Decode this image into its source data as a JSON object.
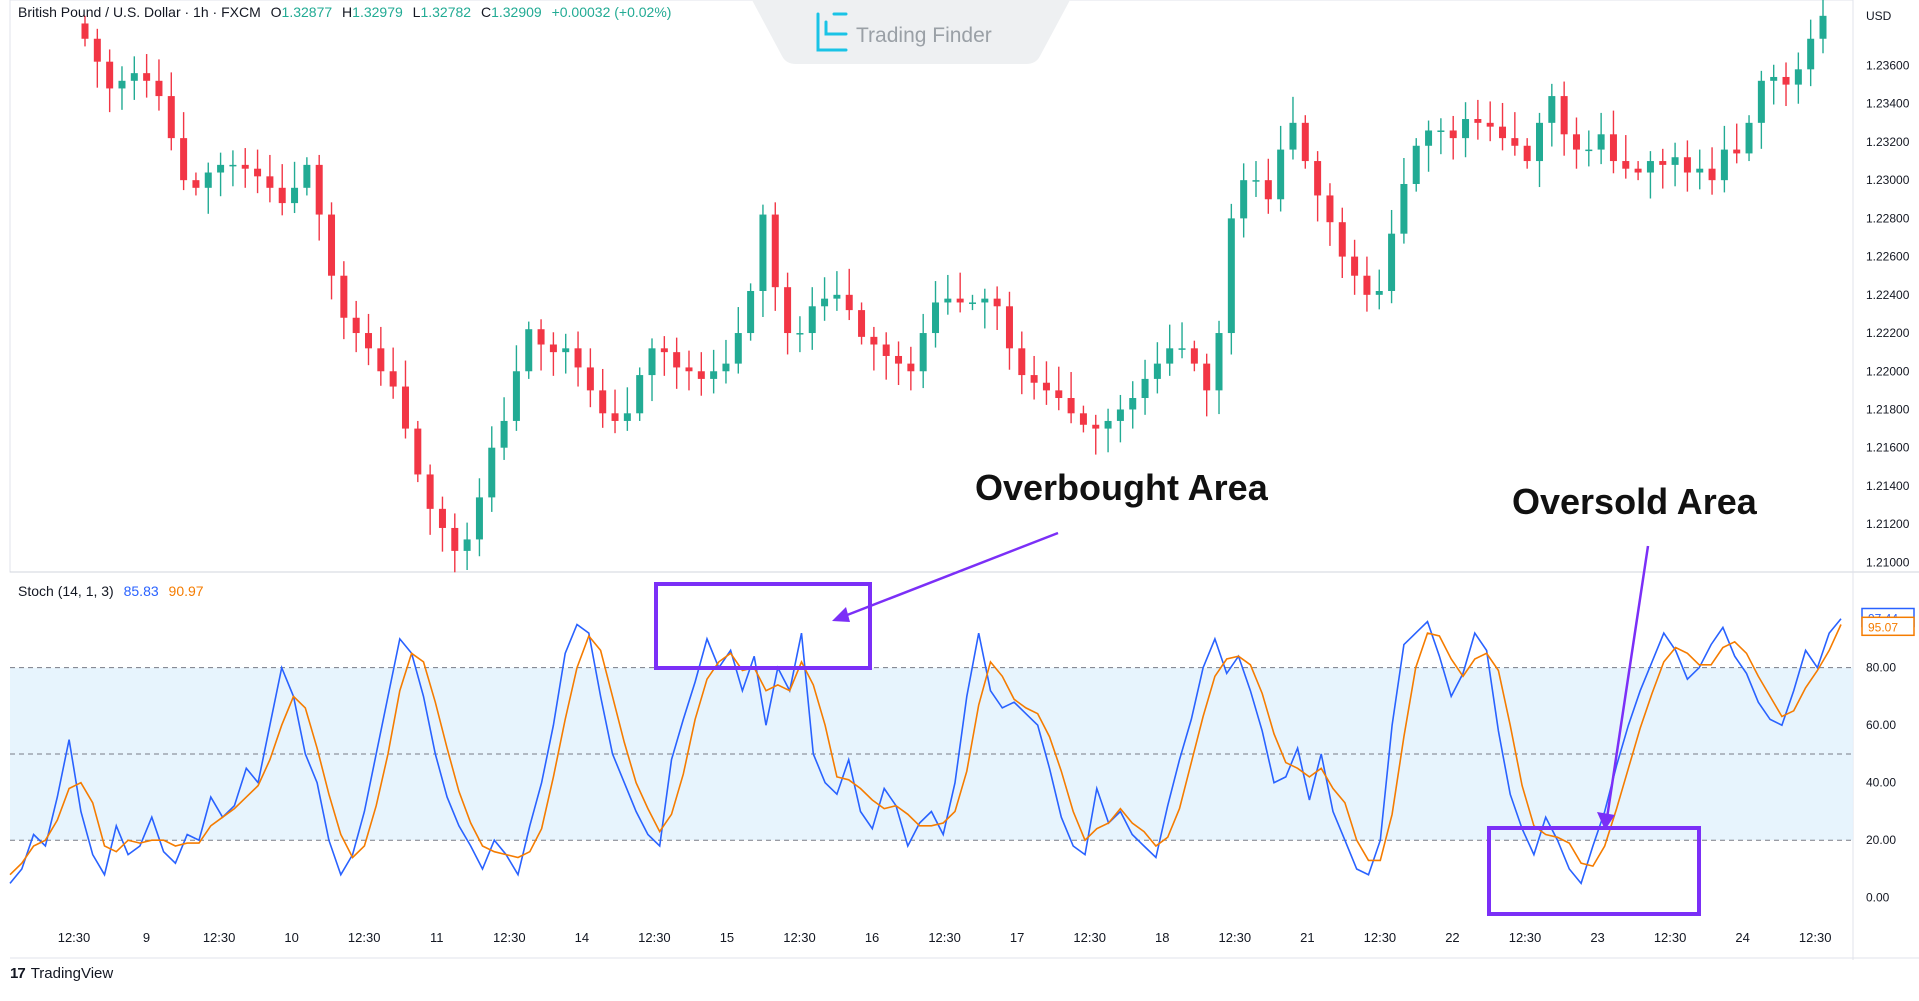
{
  "header": {
    "symbol": "British Pound / U.S. Dollar · 1h · FXCM",
    "o_label": "O",
    "o_value": "1.32877",
    "h_label": "H",
    "h_value": "1.32979",
    "l_label": "L",
    "l_value": "1.32782",
    "c_label": "C",
    "c_value": "1.32909",
    "change": "+0.00032 (+0.02%)"
  },
  "watermark": {
    "text": "Trading Finder"
  },
  "footer": {
    "brand": "TradingView",
    "brand_mark": "17"
  },
  "annotations": {
    "overbought": "Overbought Area",
    "oversold": "Oversold Area"
  },
  "colors": {
    "up": "#22ab94",
    "down": "#f23645",
    "k_line": "#2962ff",
    "d_line": "#f57c00",
    "band": "#e3f2fd",
    "annotation": "#7b2ff7",
    "grid": "#787b86"
  },
  "chart_data": [
    {
      "type": "candlestick",
      "currency": "USD",
      "price_axis_ticks": [
        "1.23600",
        "1.23400",
        "1.23200",
        "1.23000",
        "1.22800",
        "1.22600",
        "1.22400",
        "1.22200",
        "1.22000",
        "1.21800",
        "1.21600",
        "1.21400",
        "1.21200",
        "1.21000"
      ],
      "ylim": [
        1.2096,
        1.2388
      ],
      "x_tick_labels": [
        "12:30",
        "9",
        "12:30",
        "10",
        "12:30",
        "11",
        "12:30",
        "14",
        "12:30",
        "15",
        "12:30",
        "16",
        "12:30",
        "17",
        "12:30",
        "18",
        "12:30",
        "21",
        "12:30",
        "22",
        "12:30",
        "23",
        "12:30",
        "24",
        "12:30"
      ],
      "close_path": [
        1.2374,
        1.2362,
        1.2348,
        1.2352,
        1.2356,
        1.2352,
        1.2344,
        1.2322,
        1.23,
        1.2296,
        1.2304,
        1.2308,
        1.2308,
        1.2306,
        1.2302,
        1.2296,
        1.2288,
        1.2296,
        1.2308,
        1.2282,
        1.225,
        1.2228,
        1.222,
        1.2212,
        1.22,
        1.2192,
        1.217,
        1.2146,
        1.2128,
        1.2118,
        1.2106,
        1.2112,
        1.2134,
        1.216,
        1.2174,
        1.22,
        1.2222,
        1.2214,
        1.221,
        1.2212,
        1.2202,
        1.219,
        1.2178,
        1.2174,
        1.2178,
        1.2198,
        1.2212,
        1.221,
        1.2202,
        1.22,
        1.2196,
        1.22,
        1.2204,
        1.222,
        1.2242,
        1.2282,
        1.2244,
        1.222,
        1.222,
        1.2234,
        1.2238,
        1.224,
        1.2232,
        1.2218,
        1.2214,
        1.2208,
        1.2204,
        1.22,
        1.222,
        1.2236,
        1.2238,
        1.2236,
        1.2236,
        1.2238,
        1.2234,
        1.2212,
        1.2198,
        1.2194,
        1.219,
        1.2186,
        1.2178,
        1.2172,
        1.217,
        1.2174,
        1.218,
        1.2186,
        1.2196,
        1.2204,
        1.2212,
        1.2212,
        1.2204,
        1.219,
        1.222,
        1.228,
        1.23,
        1.23,
        1.229,
        1.2316,
        1.233,
        1.231,
        1.2292,
        1.2278,
        1.226,
        1.225,
        1.224,
        1.2242,
        1.2272,
        1.2298,
        1.2318,
        1.2326,
        1.2326,
        1.2322,
        1.2332,
        1.233,
        1.2328,
        1.2322,
        1.2318,
        1.231,
        1.233,
        1.2344,
        1.2324,
        1.2316,
        1.2316,
        1.2324,
        1.231,
        1.2306,
        1.2304,
        1.231,
        1.2308,
        1.2312,
        1.2304,
        1.2306,
        1.23,
        1.2316,
        1.2314,
        1.233,
        1.2352,
        1.2354,
        1.235,
        1.2358,
        1.2374,
        1.2386
      ]
    },
    {
      "type": "line",
      "indicator": "Stoch (14, 1, 3)",
      "k_value": "85.83",
      "d_value": "90.97",
      "last_k_label": "97.44",
      "last_d_label": "95.07",
      "ylim": [
        -6,
        107
      ],
      "y_ticks": [
        "80.00",
        "60.00",
        "40.00",
        "20.00",
        "0.00"
      ],
      "levels": [
        80,
        50,
        20
      ],
      "series": [
        {
          "key": "k",
          "values": [
            5,
            10,
            22,
            18,
            35,
            55,
            30,
            15,
            8,
            25,
            15,
            18,
            28,
            16,
            12,
            22,
            20,
            35,
            28,
            32,
            45,
            40,
            60,
            80,
            70,
            50,
            40,
            20,
            8,
            15,
            30,
            50,
            70,
            90,
            85,
            70,
            50,
            35,
            25,
            18,
            10,
            20,
            15,
            8,
            25,
            40,
            60,
            85,
            95,
            92,
            70,
            50,
            40,
            30,
            22,
            18,
            48,
            62,
            75,
            90,
            80,
            86,
            72,
            84,
            60,
            80,
            72,
            92,
            50,
            40,
            36,
            48,
            30,
            24,
            38,
            32,
            18,
            26,
            30,
            22,
            40,
            70,
            92,
            72,
            66,
            68,
            64,
            60,
            45,
            28,
            18,
            15,
            38,
            26,
            30,
            22,
            18,
            14,
            32,
            48,
            62,
            80,
            90,
            78,
            84,
            72,
            58,
            40,
            42,
            52,
            34,
            50,
            30,
            20,
            10,
            8,
            20,
            60,
            88,
            92,
            96,
            84,
            70,
            78,
            92,
            86,
            58,
            36,
            24,
            15,
            28,
            20,
            10,
            5,
            18,
            30,
            46,
            60,
            72,
            82,
            92,
            86,
            76,
            80,
            88,
            94,
            84,
            78,
            68,
            62,
            60,
            72,
            86,
            80,
            92,
            97
          ]
        },
        {
          "key": "d",
          "values": [
            8,
            12,
            18,
            20,
            27,
            38,
            40,
            33,
            18,
            16,
            20,
            19,
            20,
            20,
            18,
            19,
            19,
            25,
            28,
            31,
            35,
            39,
            48,
            60,
            70,
            66,
            52,
            36,
            22,
            14,
            18,
            32,
            50,
            72,
            85,
            82,
            68,
            52,
            37,
            26,
            18,
            16,
            15,
            14,
            16,
            24,
            42,
            62,
            80,
            91,
            86,
            70,
            54,
            40,
            31,
            23,
            29,
            43,
            62,
            76,
            82,
            85,
            79,
            80,
            72,
            74,
            72,
            82,
            74,
            60,
            42,
            41,
            38,
            34,
            31,
            32,
            29,
            25,
            25,
            26,
            30,
            44,
            67,
            82,
            77,
            69,
            66,
            64,
            56,
            44,
            30,
            20,
            24,
            26,
            31,
            26,
            23,
            18,
            21,
            31,
            47,
            63,
            77,
            83,
            84,
            81,
            71,
            57,
            47,
            45,
            42,
            45,
            38,
            33,
            20,
            13,
            13,
            29,
            56,
            80,
            92,
            91,
            83,
            77,
            83,
            85,
            79,
            60,
            39,
            25,
            22,
            21,
            19,
            12,
            11,
            18,
            31,
            45,
            59,
            71,
            82,
            87,
            85,
            81,
            81,
            87,
            89,
            85,
            77,
            70,
            63,
            65,
            73,
            79,
            86,
            95
          ]
        }
      ]
    }
  ]
}
